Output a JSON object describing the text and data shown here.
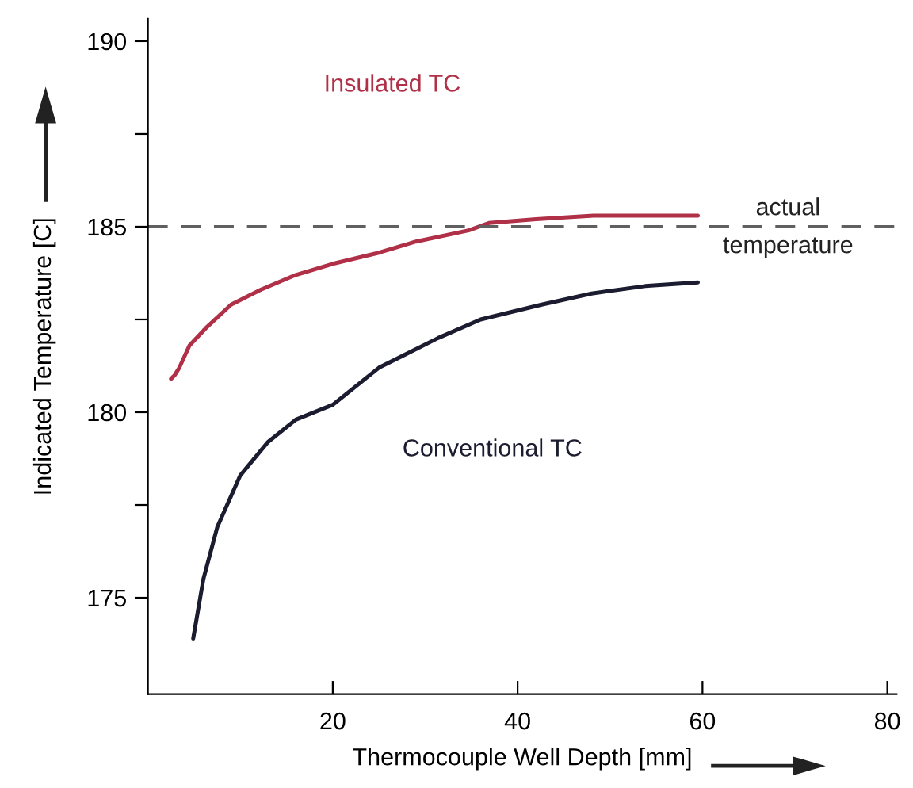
{
  "chart_data": {
    "type": "line",
    "xlabel": "Thermocouple Well Depth [mm]",
    "ylabel": "Indicated Temperature [C]",
    "xlim": [
      0,
      81
    ],
    "ylim": [
      172.4,
      190.6
    ],
    "xticks": [
      20,
      40,
      60,
      80
    ],
    "yticks": [
      175,
      {
        "value": 177.5,
        "label": null
      },
      180,
      {
        "value": 182.5,
        "label": null
      },
      185,
      {
        "value": 187.5,
        "label": null
      },
      190
    ],
    "grid": false,
    "legend": false,
    "marker": "none",
    "line_style": "solid",
    "series": [
      {
        "name": "Insulated TC",
        "color": "#b03048",
        "x": [
          2.5,
          2.9,
          3.4,
          4.5,
          6.4,
          9,
          12.2,
          16,
          20,
          25,
          29,
          34.7,
          36.9,
          42,
          48.2,
          54,
          59.5
        ],
        "values": [
          180.9,
          181.0,
          181.2,
          181.8,
          182.3,
          182.9,
          183.3,
          183.7,
          184.0,
          184.3,
          184.6,
          184.9,
          185.1,
          185.2,
          185.3,
          185.3,
          185.3
        ]
      },
      {
        "name": "Conventional TC",
        "color": "#1c1c30",
        "x": [
          4.9,
          6,
          7.5,
          10,
          13,
          16,
          20,
          25,
          31.4,
          36,
          42.6,
          48,
          53.8,
          59.5
        ],
        "values": [
          173.9,
          175.5,
          176.9,
          178.3,
          179.2,
          179.8,
          180.2,
          181.2,
          182.0,
          182.5,
          182.9,
          183.2,
          183.4,
          183.5
        ]
      }
    ],
    "ref_lines": [
      {
        "axis": "y",
        "value": 185,
        "label": "actual temperature",
        "color": "#606060",
        "line_style": "dashed"
      }
    ]
  }
}
